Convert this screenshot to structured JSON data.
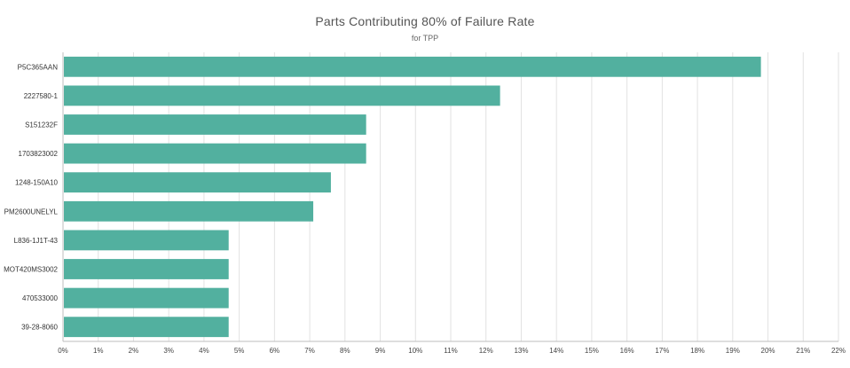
{
  "chart_data": {
    "type": "bar",
    "orientation": "horizontal",
    "title": "Parts Contributing 80% of Failure Rate",
    "subtitle": "for TPP",
    "categories": [
      "P5C365AAN",
      "2227580-1",
      "S151232F",
      "1703823002",
      "1248-150A10",
      "PM2600UNELYL",
      "L836-1J1T-43",
      "MOT420MS3002",
      "470533000",
      "39-28-8060"
    ],
    "values": [
      19.8,
      12.4,
      8.6,
      8.6,
      7.6,
      7.1,
      4.7,
      4.7,
      4.7,
      4.7
    ],
    "xlim": [
      0,
      22
    ],
    "x_ticks": [
      "0%",
      "1%",
      "2%",
      "3%",
      "4%",
      "5%",
      "6%",
      "7%",
      "8%",
      "9%",
      "10%",
      "11%",
      "12%",
      "13%",
      "14%",
      "15%",
      "16%",
      "17%",
      "18%",
      "19%",
      "20%",
      "21%",
      "22%"
    ],
    "grid": true,
    "bar_color": "#52b09f",
    "xlabel": "",
    "ylabel": ""
  }
}
